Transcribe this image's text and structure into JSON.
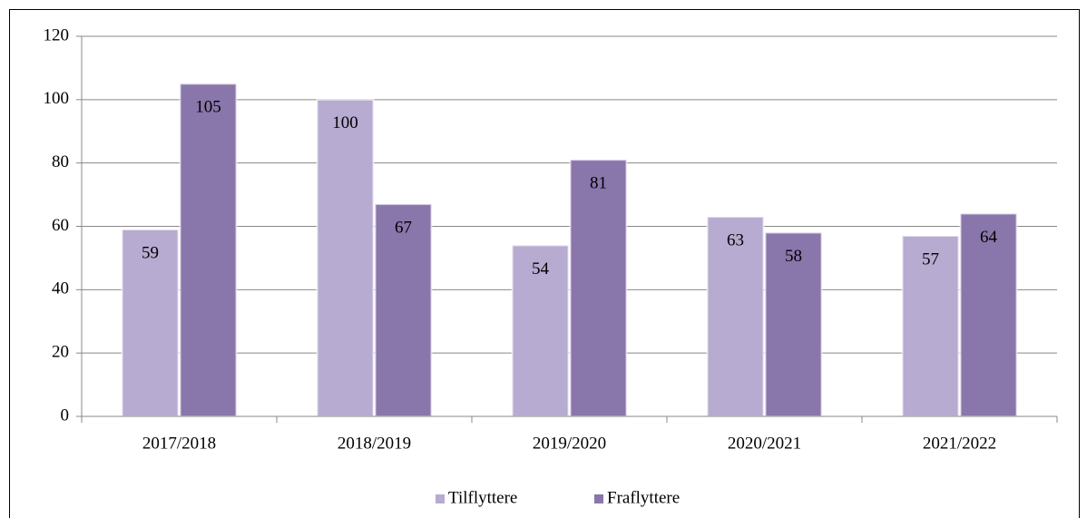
{
  "chart_data": {
    "type": "bar",
    "categories": [
      "2017/2018",
      "2018/2019",
      "2019/2020",
      "2020/2021",
      "2021/2022"
    ],
    "series": [
      {
        "name": "Tilflyttere",
        "color": "#b7abd1",
        "values": [
          59,
          100,
          54,
          63,
          57
        ]
      },
      {
        "name": "Fraflyttere",
        "color": "#8976ab",
        "values": [
          105,
          67,
          81,
          58,
          64
        ]
      }
    ],
    "ylim": [
      0,
      120
    ],
    "yticks": [
      0,
      20,
      40,
      60,
      80,
      100,
      120
    ],
    "grid": true,
    "legend": "bottom",
    "data_labels": true
  }
}
